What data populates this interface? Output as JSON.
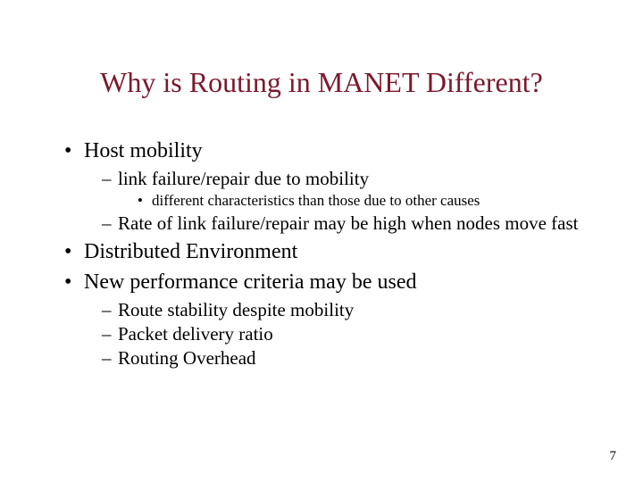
{
  "title": {
    "text": "Why is Routing in MANET Different?",
    "color": "#7a1a2b",
    "fontsize": 32
  },
  "body_color": "#000000",
  "fontsizes": {
    "lvl1": 24,
    "lvl2": 21,
    "lvl3": 17
  },
  "bullets": {
    "b1": "Host mobility",
    "b1_1": "link failure/repair due to mobility",
    "b1_1_1": "different characteristics than those due to other causes",
    "b1_2": "Rate of link failure/repair may be high when nodes move fast",
    "b2": "Distributed Environment",
    "b3": "New performance criteria may be used",
    "b3_1": "Route stability despite mobility",
    "b3_2": "Packet delivery ratio",
    "b3_3": "Routing Overhead"
  },
  "page_number": "7",
  "background_color": "#ffffff"
}
